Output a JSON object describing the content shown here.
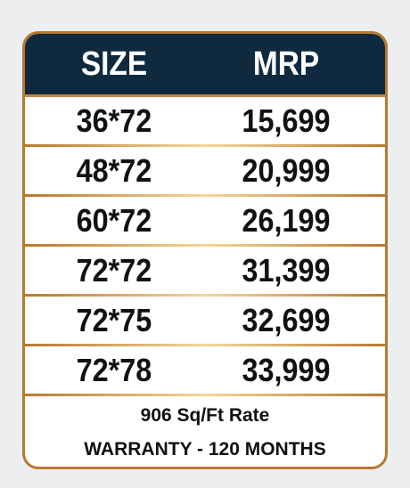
{
  "table": {
    "header": [
      "SIZE",
      "MRP"
    ],
    "rows": [
      [
        "36*72",
        "15,699"
      ],
      [
        "48*72",
        "20,999"
      ],
      [
        "60*72",
        "26,199"
      ],
      [
        "72*72",
        "31,399"
      ],
      [
        "72*75",
        "32,699"
      ],
      [
        "72*78",
        "33,999"
      ]
    ]
  },
  "footer": {
    "rate": "906 Sq/Ft Rate",
    "warranty": "WARRANTY - 120 MONTHS"
  }
}
